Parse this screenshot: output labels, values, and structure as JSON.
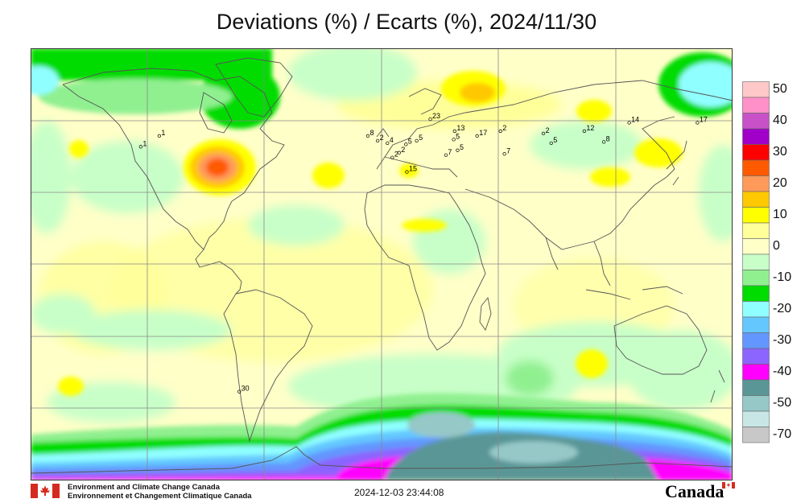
{
  "title": "Deviations (%) / Ecarts (%), 2024/11/30",
  "legend": {
    "items": [
      {
        "label": "50",
        "color": "#ffc8c8"
      },
      {
        "label": "",
        "color": "#ff90c8"
      },
      {
        "label": "40",
        "color": "#c850c8"
      },
      {
        "label": "",
        "color": "#a000c8"
      },
      {
        "label": "30",
        "color": "#ff0000"
      },
      {
        "label": "",
        "color": "#ff5a00"
      },
      {
        "label": "20",
        "color": "#ff9a5a"
      },
      {
        "label": "",
        "color": "#ffc800"
      },
      {
        "label": "10",
        "color": "#ffff00"
      },
      {
        "label": "",
        "color": "#ffff9a"
      },
      {
        "label": "0",
        "color": "#ffffc8"
      },
      {
        "label": "",
        "color": "#c8ffc8"
      },
      {
        "label": "-10",
        "color": "#90f090"
      },
      {
        "label": "",
        "color": "#00dc00"
      },
      {
        "label": "-20",
        "color": "#90ffff"
      },
      {
        "label": "",
        "color": "#64c8ff"
      },
      {
        "label": "-30",
        "color": "#6496ff"
      },
      {
        "label": "",
        "color": "#8c64ff"
      },
      {
        "label": "-40",
        "color": "#ff00ff"
      },
      {
        "label": "",
        "color": "#5a9696"
      },
      {
        "label": "-50",
        "color": "#96c8c8"
      },
      {
        "label": "",
        "color": "#c8e6e6"
      },
      {
        "label": "-70",
        "color": "#c8c8c8"
      }
    ]
  },
  "stations": [
    {
      "label": "1",
      "lon": -123.5,
      "lat": 49.0
    },
    {
      "label": "1",
      "lon": -114.0,
      "lat": 53.5
    },
    {
      "label": "8",
      "lon": -7.0,
      "lat": 53.5
    },
    {
      "label": "2",
      "lon": -2.0,
      "lat": 51.5
    },
    {
      "label": "4",
      "lon": 3.0,
      "lat": 50.5
    },
    {
      "label": "2",
      "lon": 5.5,
      "lat": 44.5
    },
    {
      "label": "2",
      "lon": 9.0,
      "lat": 46.5
    },
    {
      "label": "5",
      "lon": 12.5,
      "lat": 50.0
    },
    {
      "label": "5",
      "lon": 18.0,
      "lat": 51.5
    },
    {
      "label": "15",
      "lon": 13.0,
      "lat": 38.5
    },
    {
      "label": "23",
      "lon": 25.0,
      "lat": 60.5
    },
    {
      "label": "13",
      "lon": 37.5,
      "lat": 55.5
    },
    {
      "label": "5",
      "lon": 37.0,
      "lat": 52.0
    },
    {
      "label": "5",
      "lon": 39.0,
      "lat": 47.5
    },
    {
      "label": "7",
      "lon": 33.0,
      "lat": 45.5
    },
    {
      "label": "17",
      "lon": 49.0,
      "lat": 53.5
    },
    {
      "label": "2",
      "lon": 61.0,
      "lat": 55.5
    },
    {
      "label": "7",
      "lon": 63.0,
      "lat": 46.0
    },
    {
      "label": "2",
      "lon": 83.0,
      "lat": 54.5
    },
    {
      "label": "5",
      "lon": 87.0,
      "lat": 50.5
    },
    {
      "label": "12",
      "lon": 104.0,
      "lat": 55.5
    },
    {
      "label": "8",
      "lon": 114.0,
      "lat": 51.0
    },
    {
      "label": "14",
      "lon": 127.0,
      "lat": 59.0
    },
    {
      "label": "17",
      "lon": 162.0,
      "lat": 59.0
    },
    {
      "label": "30",
      "lon": -73.0,
      "lat": -53.0
    }
  ],
  "footer": {
    "org_en": "Environment and Climate Change Canada",
    "org_fr": "Environnement et Changement Climatique Canada",
    "timestamp": "2024-12-03 23:44:08",
    "wordmark": "Canada"
  }
}
